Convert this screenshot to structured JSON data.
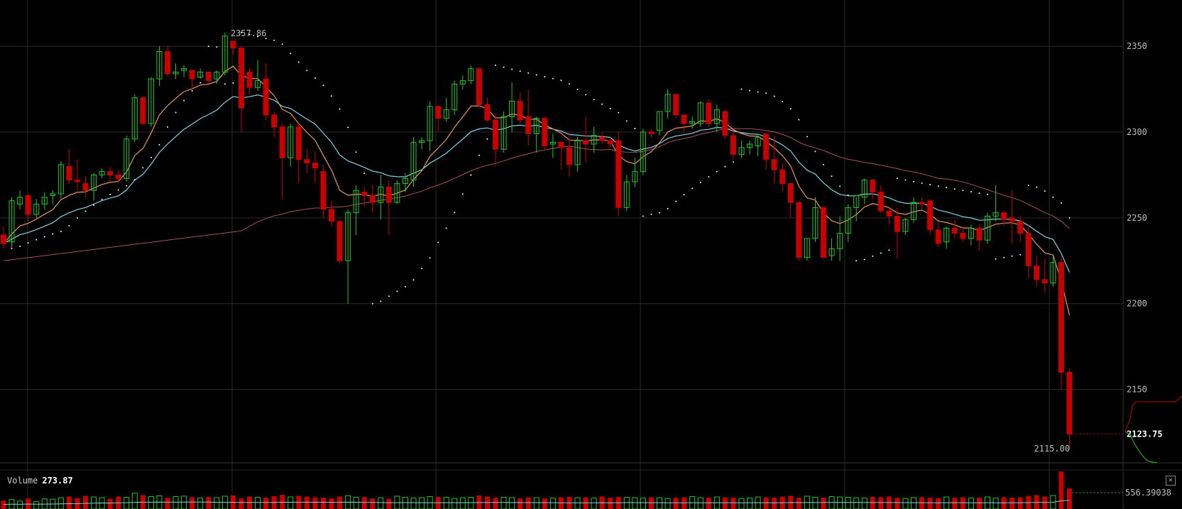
{
  "chart_data": {
    "type": "candlestick",
    "y_axis": {
      "ticks": [
        2150,
        2200,
        2250,
        2300,
        2350
      ],
      "range": [
        2108,
        2377
      ]
    },
    "annotations": {
      "high_label": "2357.86",
      "low_label": "2115.00",
      "last_price": "2123.75"
    },
    "volume": {
      "label": "Volume",
      "value": "273.87",
      "axis_label": "556.39038"
    },
    "colors": {
      "up": "#1fc81f",
      "down": "#c80000",
      "ema_fast": "#e8965a",
      "ema_mid": "#7fd3e6",
      "sma_slow": "#a8505a",
      "sar": "#ffffff",
      "grid": "#2a2a2a"
    },
    "candles": [
      [
        2240,
        2245,
        2232,
        2235
      ],
      [
        2236,
        2262,
        2233,
        2260
      ],
      [
        2258,
        2266,
        2255,
        2262
      ],
      [
        2263,
        2263,
        2248,
        2252
      ],
      [
        2252,
        2261,
        2250,
        2258
      ],
      [
        2258,
        2265,
        2255,
        2262
      ],
      [
        2263,
        2266,
        2258,
        2264
      ],
      [
        2264,
        2283,
        2261,
        2281
      ],
      [
        2280,
        2290,
        2270,
        2272
      ],
      [
        2272,
        2284,
        2266,
        2271
      ],
      [
        2270,
        2274,
        2262,
        2266
      ],
      [
        2266,
        2276,
        2260,
        2275
      ],
      [
        2275,
        2279,
        2273,
        2277
      ],
      [
        2277,
        2280,
        2271,
        2275
      ],
      [
        2275,
        2278,
        2270,
        2273
      ],
      [
        2273,
        2298,
        2271,
        2296
      ],
      [
        2296,
        2322,
        2294,
        2320
      ],
      [
        2320,
        2321,
        2304,
        2305
      ],
      [
        2305,
        2332,
        2303,
        2331
      ],
      [
        2331,
        2350,
        2327,
        2347
      ],
      [
        2347,
        2350,
        2332,
        2334
      ],
      [
        2334,
        2340,
        2331,
        2335
      ],
      [
        2336,
        2339,
        2332,
        2337
      ],
      [
        2336,
        2336,
        2325,
        2331
      ],
      [
        2332,
        2337,
        2331,
        2335
      ],
      [
        2335,
        2335,
        2329,
        2330
      ],
      [
        2331,
        2336,
        2328,
        2335
      ],
      [
        2335,
        2358,
        2333,
        2356
      ],
      [
        2353,
        2353,
        2345,
        2349
      ],
      [
        2349,
        2350,
        2300,
        2314
      ],
      [
        2335,
        2337,
        2322,
        2326
      ],
      [
        2326,
        2342,
        2324,
        2330
      ],
      [
        2331,
        2340,
        2307,
        2310
      ],
      [
        2310,
        2312,
        2297,
        2303
      ],
      [
        2303,
        2305,
        2261,
        2285
      ],
      [
        2285,
        2305,
        2280,
        2303
      ],
      [
        2303,
        2305,
        2270,
        2284
      ],
      [
        2284,
        2290,
        2276,
        2282
      ],
      [
        2282,
        2289,
        2270,
        2279
      ],
      [
        2277,
        2281,
        2250,
        2255
      ],
      [
        2255,
        2260,
        2245,
        2248
      ],
      [
        2248,
        2248,
        2224,
        2225
      ],
      [
        2225,
        2255,
        2200,
        2253
      ],
      [
        2253,
        2269,
        2240,
        2266
      ],
      [
        2265,
        2268,
        2257,
        2263
      ],
      [
        2263,
        2269,
        2253,
        2259
      ],
      [
        2259,
        2275,
        2249,
        2268
      ],
      [
        2268,
        2272,
        2240,
        2259
      ],
      [
        2259,
        2272,
        2258,
        2270
      ],
      [
        2270,
        2276,
        2265,
        2273
      ],
      [
        2272,
        2297,
        2268,
        2294
      ],
      [
        2294,
        2297,
        2290,
        2295
      ],
      [
        2295,
        2318,
        2289,
        2315
      ],
      [
        2315,
        2316,
        2300,
        2308
      ],
      [
        2308,
        2320,
        2306,
        2313
      ],
      [
        2313,
        2330,
        2310,
        2328
      ],
      [
        2328,
        2333,
        2325,
        2330
      ],
      [
        2330,
        2339,
        2328,
        2337
      ],
      [
        2337,
        2337,
        2314,
        2316
      ],
      [
        2316,
        2320,
        2306,
        2307
      ],
      [
        2307,
        2311,
        2280,
        2290
      ],
      [
        2290,
        2312,
        2288,
        2309
      ],
      [
        2309,
        2329,
        2300,
        2318
      ],
      [
        2318,
        2323,
        2305,
        2307
      ],
      [
        2309,
        2325,
        2292,
        2299
      ],
      [
        2299,
        2309,
        2288,
        2308
      ],
      [
        2308,
        2309,
        2290,
        2292
      ],
      [
        2293,
        2299,
        2285,
        2294
      ],
      [
        2294,
        2294,
        2278,
        2291
      ],
      [
        2291,
        2300,
        2274,
        2281
      ],
      [
        2281,
        2297,
        2277,
        2295
      ],
      [
        2295,
        2309,
        2282,
        2293
      ],
      [
        2293,
        2303,
        2288,
        2298
      ],
      [
        2297,
        2300,
        2293,
        2295
      ],
      [
        2295,
        2298,
        2291,
        2293
      ],
      [
        2295,
        2300,
        2251,
        2256
      ],
      [
        2256,
        2275,
        2254,
        2271
      ],
      [
        2271,
        2285,
        2268,
        2277
      ],
      [
        2277,
        2302,
        2275,
        2300
      ],
      [
        2300,
        2302,
        2297,
        2299
      ],
      [
        2301,
        2312,
        2298,
        2312
      ],
      [
        2312,
        2325,
        2308,
        2322
      ],
      [
        2322,
        2322,
        2308,
        2310
      ],
      [
        2310,
        2310,
        2300,
        2305
      ],
      [
        2305,
        2309,
        2302,
        2306
      ],
      [
        2305,
        2318,
        2303,
        2317
      ],
      [
        2317,
        2319,
        2303,
        2305
      ],
      [
        2305,
        2316,
        2300,
        2313
      ],
      [
        2312,
        2313,
        2296,
        2298
      ],
      [
        2298,
        2301,
        2284,
        2287
      ],
      [
        2287,
        2295,
        2285,
        2291
      ],
      [
        2291,
        2295,
        2287,
        2293
      ],
      [
        2292,
        2297,
        2286,
        2297
      ],
      [
        2299,
        2299,
        2278,
        2284
      ],
      [
        2284,
        2298,
        2270,
        2278
      ],
      [
        2278,
        2282,
        2265,
        2270
      ],
      [
        2270,
        2270,
        2250,
        2259
      ],
      [
        2259,
        2260,
        2225,
        2227
      ],
      [
        2227,
        2238,
        2225,
        2238
      ],
      [
        2238,
        2262,
        2236,
        2256
      ],
      [
        2256,
        2256,
        2226,
        2227
      ],
      [
        2228,
        2238,
        2225,
        2232
      ],
      [
        2232,
        2251,
        2225,
        2241
      ],
      [
        2241,
        2258,
        2236,
        2256
      ],
      [
        2256,
        2262,
        2248,
        2263
      ],
      [
        2262,
        2273,
        2258,
        2272
      ],
      [
        2272,
        2273,
        2261,
        2265
      ],
      [
        2265,
        2269,
        2253,
        2254
      ],
      [
        2254,
        2256,
        2246,
        2251
      ],
      [
        2251,
        2256,
        2226,
        2242
      ],
      [
        2242,
        2250,
        2240,
        2249
      ],
      [
        2249,
        2262,
        2247,
        2259
      ],
      [
        2259,
        2262,
        2255,
        2258
      ],
      [
        2260,
        2260,
        2240,
        2243
      ],
      [
        2243,
        2248,
        2233,
        2235
      ],
      [
        2236,
        2245,
        2232,
        2244
      ],
      [
        2244,
        2249,
        2238,
        2241
      ],
      [
        2241,
        2245,
        2236,
        2238
      ],
      [
        2238,
        2246,
        2234,
        2244
      ],
      [
        2244,
        2246,
        2231,
        2237
      ],
      [
        2237,
        2253,
        2235,
        2251
      ],
      [
        2251,
        2269,
        2248,
        2253
      ],
      [
        2253,
        2254,
        2245,
        2249
      ],
      [
        2250,
        2266,
        2235,
        2248
      ],
      [
        2248,
        2251,
        2236,
        2241
      ],
      [
        2241,
        2246,
        2215,
        2222
      ],
      [
        2222,
        2228,
        2210,
        2214
      ],
      [
        2214,
        2226,
        2206,
        2212
      ],
      [
        2212,
        2228,
        2210,
        2224
      ],
      [
        2224,
        2228,
        2150,
        2160
      ],
      [
        2160,
        2162,
        2115,
        2124
      ]
    ],
    "volumes": [
      0.22,
      0.25,
      0.21,
      0.28,
      0.2,
      0.27,
      0.26,
      0.3,
      0.33,
      0.29,
      0.35,
      0.32,
      0.3,
      0.27,
      0.33,
      0.31,
      0.42,
      0.37,
      0.33,
      0.35,
      0.3,
      0.33,
      0.34,
      0.31,
      0.29,
      0.32,
      0.3,
      0.34,
      0.36,
      0.28,
      0.33,
      0.31,
      0.3,
      0.34,
      0.38,
      0.32,
      0.35,
      0.33,
      0.31,
      0.3,
      0.28,
      0.33,
      0.35,
      0.31,
      0.32,
      0.28,
      0.3,
      0.27,
      0.34,
      0.31,
      0.29,
      0.3,
      0.33,
      0.32,
      0.31,
      0.28,
      0.3,
      0.31,
      0.36,
      0.33,
      0.3,
      0.31,
      0.3,
      0.28,
      0.31,
      0.3,
      0.28,
      0.29,
      0.31,
      0.32,
      0.3,
      0.31,
      0.29,
      0.33,
      0.3,
      0.32,
      0.31,
      0.3,
      0.29,
      0.31,
      0.3,
      0.28,
      0.3,
      0.31,
      0.33,
      0.3,
      0.3,
      0.32,
      0.31,
      0.3,
      0.28,
      0.29,
      0.32,
      0.31,
      0.3,
      0.33,
      0.35,
      0.3,
      0.34,
      0.31,
      0.3,
      0.33,
      0.32,
      0.31,
      0.3,
      0.29,
      0.32,
      0.31,
      0.33,
      0.3,
      0.28,
      0.3,
      0.31,
      0.3,
      0.29,
      0.32,
      0.3,
      0.31,
      0.29,
      0.3,
      0.32,
      0.29,
      0.31,
      0.3,
      0.31,
      0.35,
      0.37,
      0.33,
      0.36,
      1.0,
      0.55
    ]
  }
}
